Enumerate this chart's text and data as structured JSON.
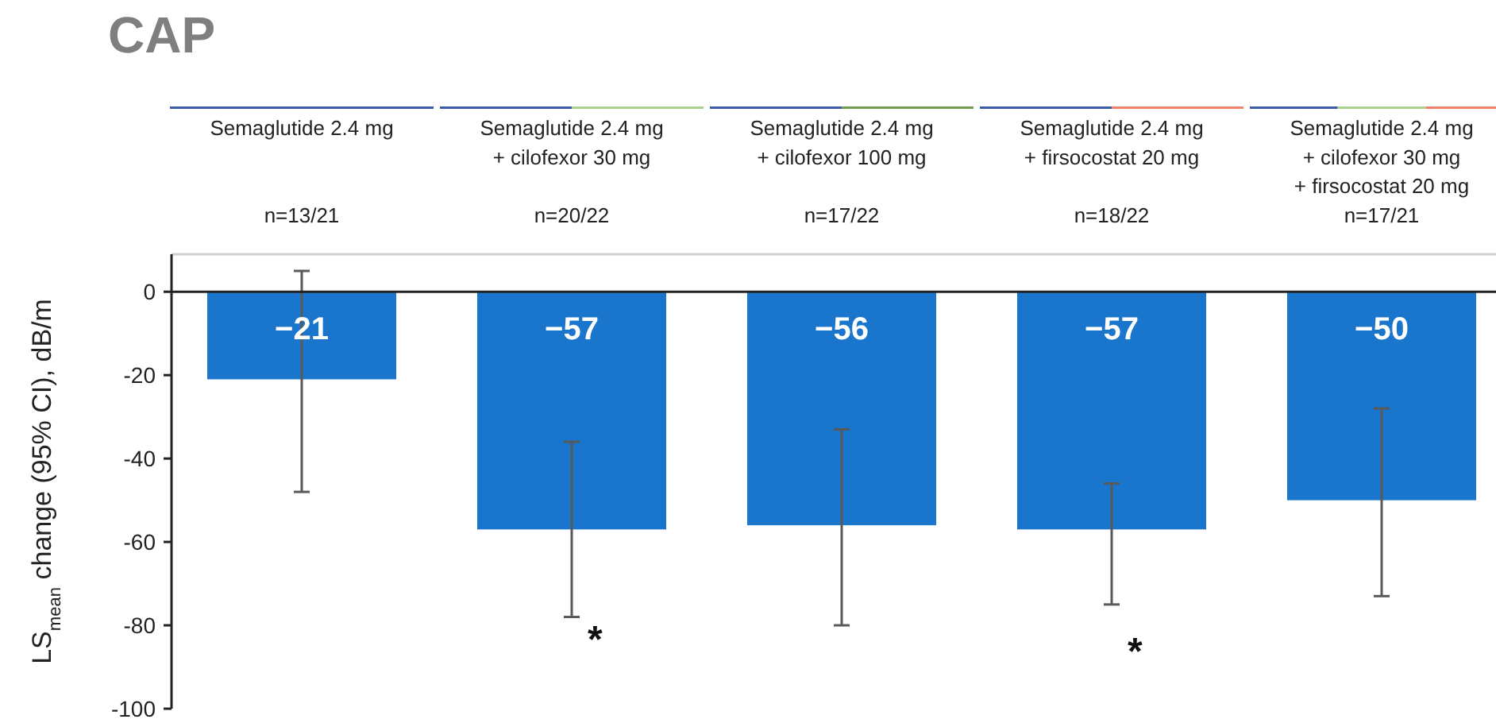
{
  "chart_data": {
    "type": "bar",
    "title": "CAP",
    "ylabel": "LS$_{mean}$ change (95% CI), dB/m",
    "categories": [
      "Semaglutide 2.4 mg",
      "Semaglutide 2.4 mg\n+ cilofexor 30 mg",
      "Semaglutide 2.4 mg\n+ cilofexor 100 mg",
      "Semaglutide 2.4 mg\n+ firsocostat 20 mg",
      "Semaglutide 2.4 mg\n+ cilofexor 30 mg\n+ firsocostat 20 mg"
    ],
    "values": [
      -21,
      -57,
      -56,
      -57,
      -50
    ],
    "errors": [
      [
        -48,
        5
      ],
      [
        -78,
        -36
      ],
      [
        -80,
        -33
      ],
      [
        -75,
        -46
      ],
      [
        -73,
        -28
      ]
    ],
    "color": "#1a75cc",
    "data_labels": true,
    "value_labels": [
      "−21",
      "−57",
      "−56",
      "−57",
      "−50"
    ],
    "ylim": [
      -100,
      9
    ],
    "yticks": [
      0,
      -20,
      -40,
      -60,
      -80,
      -100
    ],
    "ref_lines": [
      {
        "axis": "y",
        "value": 0,
        "color": "#222222"
      }
    ],
    "annotations": [
      "*",
      "*",
      "n=13/21",
      "n=20/22",
      "n=17/22",
      "n=18/22",
      "n=17/21"
    ]
  }
}
